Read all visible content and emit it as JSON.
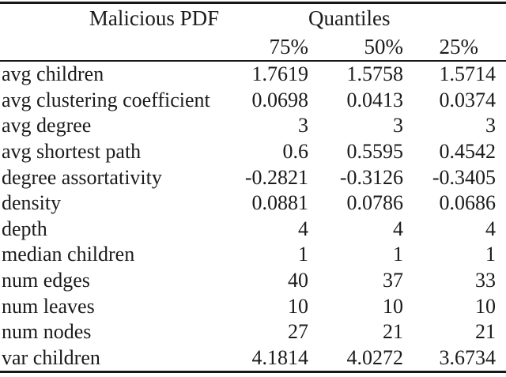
{
  "table": {
    "group_headers": {
      "left": "Malicious PDF",
      "right": "Quantiles"
    },
    "quantile_headers": [
      "75%",
      "50%",
      "25%"
    ],
    "rows": [
      {
        "label": "avg children",
        "q75": "1.7619",
        "q50": "1.5758",
        "q25": "1.5714"
      },
      {
        "label": "avg clustering coefficient",
        "q75": "0.0698",
        "q50": "0.0413",
        "q25": "0.0374"
      },
      {
        "label": "avg degree",
        "q75": "3",
        "q50": "3",
        "q25": "3"
      },
      {
        "label": "avg shortest path",
        "q75": "0.6",
        "q50": "0.5595",
        "q25": "0.4542"
      },
      {
        "label": "degree assortativity",
        "q75": "-0.2821",
        "q50": "-0.3126",
        "q25": "-0.3405"
      },
      {
        "label": "density",
        "q75": "0.0881",
        "q50": "0.0786",
        "q25": "0.0686"
      },
      {
        "label": "depth",
        "q75": "4",
        "q50": "4",
        "q25": "4"
      },
      {
        "label": "median children",
        "q75": "1",
        "q50": "1",
        "q25": "1"
      },
      {
        "label": "num edges",
        "q75": "40",
        "q50": "37",
        "q25": "33"
      },
      {
        "label": "num leaves",
        "q75": "10",
        "q50": "10",
        "q25": "10"
      },
      {
        "label": "num nodes",
        "q75": "27",
        "q50": "21",
        "q25": "21"
      },
      {
        "label": "var children",
        "q75": "4.1814",
        "q50": "4.0272",
        "q25": "3.6734"
      }
    ]
  },
  "colors": {
    "rule": "#161616",
    "text": "#1b1b1b",
    "background": "#ffffff"
  }
}
